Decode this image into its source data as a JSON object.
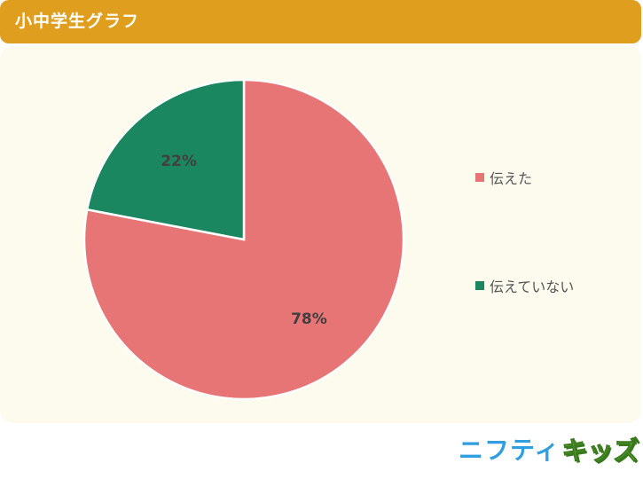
{
  "header": {
    "title": "小中学生グラフ"
  },
  "chart_data": {
    "type": "pie",
    "slices": [
      {
        "label": "伝えた",
        "value": 78,
        "display": "78%",
        "color": "#e87575"
      },
      {
        "label": "伝えていない",
        "value": 22,
        "display": "22%",
        "color": "#1a8760"
      }
    ]
  },
  "legend": {
    "items": [
      {
        "label": "伝えた",
        "color": "#e87575"
      },
      {
        "label": "伝えていない",
        "color": "#1a8760"
      }
    ]
  },
  "colors": {
    "header": "#e09e1e",
    "panel": "#fdfbee"
  },
  "logo": {
    "nifty": "ニフティ",
    "kids": "キッズ"
  }
}
